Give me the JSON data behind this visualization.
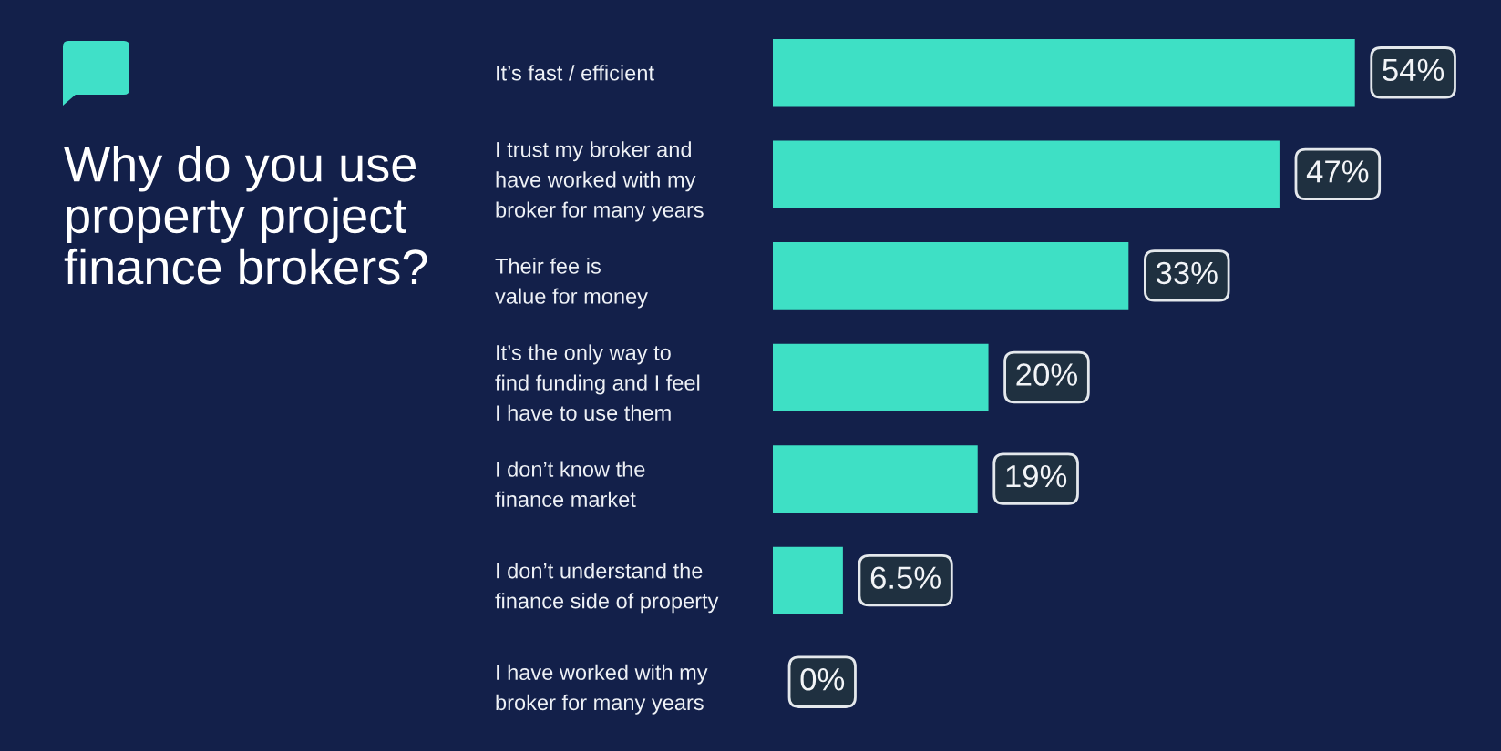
{
  "chart_data": {
    "type": "bar",
    "orientation": "horizontal",
    "title": "Why do you use\nproperty project\nfinance brokers?",
    "categories": [
      "It’s fast / efficient",
      "I trust my broker and\nhave worked with my\nbroker for many years",
      "Their fee is\nvalue for money",
      "It’s the only way to\nfind funding and I feel\nI have to use them",
      "I don’t know the\nfinance market",
      "I don’t understand the\nfinance side of property",
      "I have worked with my\nbroker for many years"
    ],
    "values": [
      54,
      47,
      33,
      20,
      19,
      6.5,
      0
    ],
    "value_labels": [
      "54%",
      "47%",
      "33%",
      "20%",
      "19%",
      "6.5%",
      "0%"
    ],
    "color": "#3ee0c5",
    "tick_labels": "y"
  }
}
